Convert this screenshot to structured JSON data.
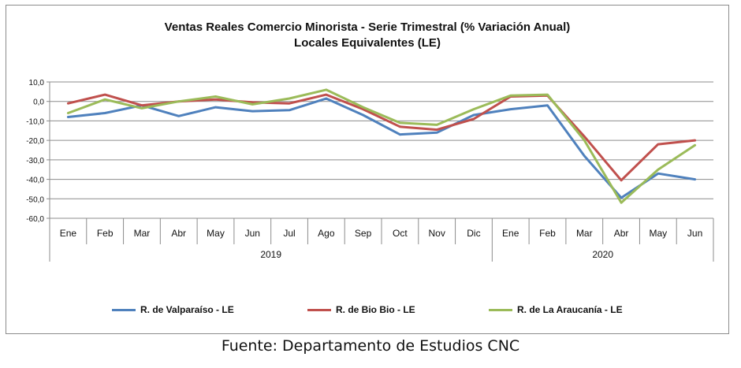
{
  "chart_data": {
    "type": "line",
    "title": "Ventas Reales Comercio Minorista - Serie Trimestral (% Variación Anual)",
    "subtitle": "Locales Equivalentes (LE)",
    "x": [
      "Ene",
      "Feb",
      "Mar",
      "Abr",
      "May",
      "Jun",
      "Jul",
      "Ago",
      "Sep",
      "Oct",
      "Nov",
      "Dic",
      "Ene",
      "Feb",
      "Mar",
      "Abr",
      "May",
      "Jun"
    ],
    "year_groups": [
      {
        "label": "2019",
        "start": 0,
        "end": 11
      },
      {
        "label": "2020",
        "start": 12,
        "end": 17
      }
    ],
    "ylim": [
      -60,
      10
    ],
    "yticks": [
      "10,0",
      "0,0",
      "-10,0",
      "-20,0",
      "-30,0",
      "-40,0",
      "-50,0",
      "-60,0"
    ],
    "grid": true,
    "legend_position": "bottom",
    "series": [
      {
        "name": "R. de Valparaíso - LE",
        "color": "#4f81bd",
        "values": [
          -8,
          -6,
          -2,
          -7.5,
          -3,
          -5,
          -4.5,
          1.5,
          -7,
          -17,
          -16,
          -7,
          -4,
          -2,
          -28,
          -49.5,
          -37,
          -40
        ]
      },
      {
        "name": "R. de Bio Bio - LE",
        "color": "#c0504d",
        "values": [
          -1,
          3.5,
          -2,
          0,
          1,
          -0.5,
          -1,
          3.5,
          -4,
          -13,
          -14.5,
          -9,
          2.5,
          3,
          -18,
          -40.5,
          -22,
          -20
        ]
      },
      {
        "name": "R. de La Araucanía - LE",
        "color": "#9bbb59",
        "values": [
          -6,
          1,
          -3.5,
          0,
          2.5,
          -1.5,
          1.5,
          6,
          -3,
          -11,
          -12,
          -4,
          3,
          3.5,
          -20,
          -52,
          -35,
          -22.5
        ]
      }
    ]
  },
  "source_text": "Fuente: Departamento de Estudios CNC"
}
